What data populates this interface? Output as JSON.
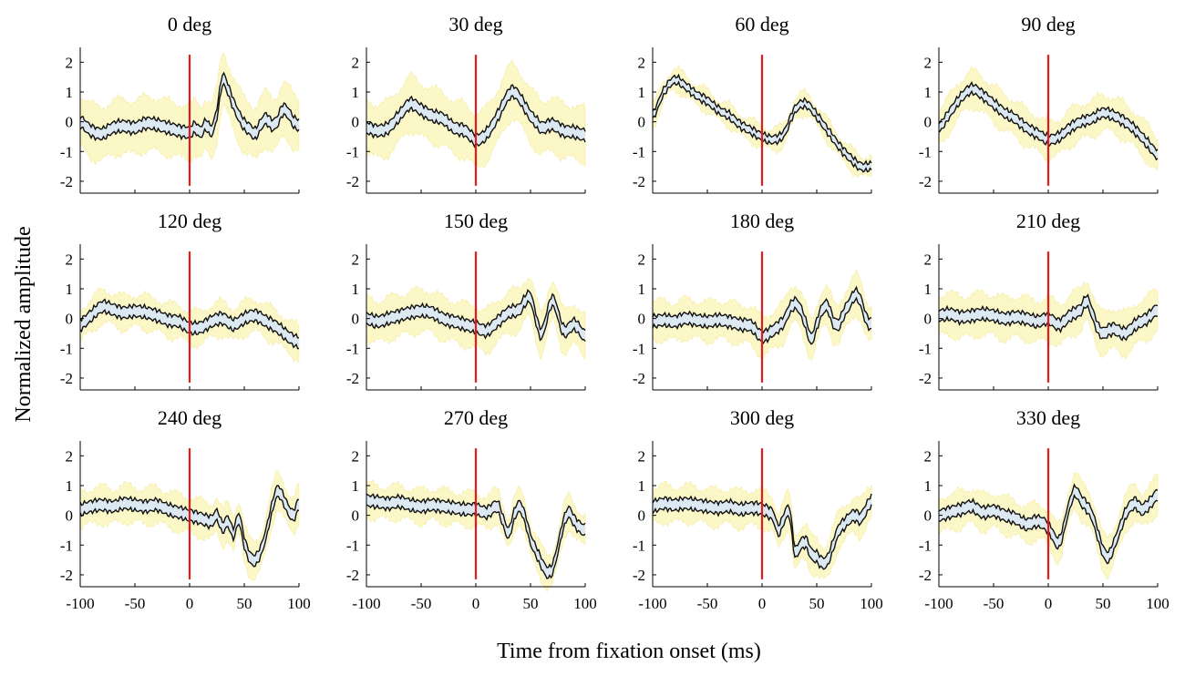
{
  "figure": {
    "ylabel": "Normalized amplitude",
    "xlabel": "Time from fixation onset (ms)"
  },
  "chart_data": {
    "type": "line",
    "xlim": [
      -100,
      100
    ],
    "ylim": [
      -2.4,
      2.5
    ],
    "xticks": [
      -100,
      -50,
      0,
      50,
      100
    ],
    "yticks": [
      2,
      1,
      0,
      -1,
      -2
    ],
    "marker_x": 0,
    "colors": {
      "band": "#fcf7c7",
      "sem": "#dde9f2",
      "line": "#111111",
      "marker": "#e31a1c"
    },
    "panels": [
      {
        "title": "0 deg",
        "x": [
          -100,
          -90,
          -80,
          -70,
          -60,
          -50,
          -40,
          -30,
          -20,
          -10,
          0,
          5,
          10,
          15,
          20,
          25,
          30,
          35,
          40,
          45,
          50,
          55,
          60,
          65,
          70,
          75,
          80,
          85,
          90,
          95,
          100
        ],
        "mean": [
          0.0,
          -0.3,
          -0.4,
          -0.2,
          -0.15,
          -0.2,
          -0.05,
          -0.1,
          -0.2,
          -0.3,
          -0.35,
          -0.2,
          -0.35,
          -0.1,
          -0.3,
          0.3,
          1.4,
          1.1,
          0.6,
          0.2,
          -0.1,
          -0.25,
          -0.4,
          -0.1,
          0.1,
          -0.1,
          0.0,
          0.4,
          0.3,
          0.0,
          -0.1
        ],
        "sem": 0.18,
        "band": 0.9
      },
      {
        "title": "30 deg",
        "x": [
          -100,
          -90,
          -80,
          -70,
          -60,
          -50,
          -40,
          -30,
          -20,
          -10,
          0,
          10,
          20,
          30,
          35,
          40,
          45,
          50,
          55,
          60,
          70,
          80,
          90,
          100
        ],
        "mean": [
          -0.2,
          -0.3,
          -0.2,
          0.2,
          0.6,
          0.4,
          0.2,
          0.1,
          -0.2,
          -0.3,
          -0.6,
          -0.4,
          0.2,
          0.9,
          1.0,
          0.8,
          0.5,
          0.2,
          0.0,
          -0.2,
          -0.1,
          -0.3,
          -0.35,
          -0.45
        ],
        "sem": 0.18,
        "band": 0.9
      },
      {
        "title": "60 deg",
        "x": [
          -100,
          -90,
          -80,
          -70,
          -60,
          -50,
          -40,
          -30,
          -20,
          -10,
          0,
          10,
          20,
          30,
          40,
          50,
          60,
          70,
          80,
          90,
          100
        ],
        "mean": [
          0.2,
          1.0,
          1.4,
          1.2,
          0.9,
          0.7,
          0.4,
          0.2,
          -0.1,
          -0.3,
          -0.5,
          -0.6,
          -0.4,
          0.4,
          0.6,
          0.2,
          -0.3,
          -0.8,
          -1.2,
          -1.5,
          -1.5
        ],
        "sem": 0.12,
        "band": 0.35
      },
      {
        "title": "90 deg",
        "x": [
          -100,
          -90,
          -80,
          -70,
          -60,
          -50,
          -40,
          -30,
          -20,
          -10,
          0,
          10,
          20,
          30,
          40,
          50,
          60,
          70,
          80,
          90,
          100
        ],
        "mean": [
          -0.2,
          0.3,
          0.8,
          1.1,
          0.9,
          0.6,
          0.3,
          0.1,
          -0.2,
          -0.4,
          -0.6,
          -0.5,
          -0.2,
          0.0,
          0.1,
          0.3,
          0.2,
          0.0,
          -0.3,
          -0.7,
          -1.1
        ],
        "sem": 0.15,
        "band": 0.6
      },
      {
        "title": "120 deg",
        "x": [
          -100,
          -90,
          -80,
          -70,
          -60,
          -50,
          -40,
          -30,
          -20,
          -10,
          0,
          10,
          20,
          30,
          40,
          50,
          60,
          70,
          80,
          90,
          100
        ],
        "mean": [
          -0.2,
          0.1,
          0.4,
          0.3,
          0.2,
          0.25,
          0.2,
          0.1,
          -0.05,
          -0.1,
          -0.3,
          -0.3,
          -0.1,
          0.0,
          -0.2,
          0.0,
          0.1,
          -0.1,
          -0.3,
          -0.6,
          -0.8
        ],
        "sem": 0.18,
        "band": 0.55
      },
      {
        "title": "150 deg",
        "x": [
          -100,
          -90,
          -80,
          -70,
          -60,
          -50,
          -40,
          -30,
          -20,
          -10,
          0,
          10,
          20,
          30,
          40,
          45,
          50,
          55,
          60,
          70,
          80,
          90,
          100
        ],
        "mean": [
          0.0,
          -0.1,
          0.0,
          0.1,
          0.2,
          0.25,
          0.2,
          0.0,
          -0.1,
          -0.2,
          -0.3,
          -0.4,
          -0.1,
          0.2,
          0.3,
          0.6,
          0.7,
          0.0,
          -0.5,
          0.6,
          -0.4,
          -0.2,
          -0.6
        ],
        "sem": 0.18,
        "band": 0.7
      },
      {
        "title": "180 deg",
        "x": [
          -100,
          -90,
          -80,
          -70,
          -60,
          -50,
          -40,
          -30,
          -20,
          -10,
          0,
          10,
          20,
          25,
          30,
          35,
          40,
          45,
          50,
          55,
          60,
          65,
          70,
          75,
          80,
          85,
          90,
          95,
          100
        ],
        "mean": [
          -0.1,
          -0.05,
          -0.1,
          0.0,
          -0.05,
          -0.1,
          -0.05,
          -0.1,
          -0.2,
          -0.25,
          -0.6,
          -0.4,
          -0.1,
          0.3,
          0.5,
          0.3,
          -0.2,
          -0.7,
          -0.2,
          0.3,
          0.4,
          -0.1,
          -0.2,
          0.2,
          0.5,
          0.8,
          0.6,
          0.0,
          -0.2
        ],
        "sem": 0.18,
        "band": 0.65
      },
      {
        "title": "210 deg",
        "x": [
          -100,
          -90,
          -80,
          -70,
          -60,
          -50,
          -40,
          -30,
          -20,
          -10,
          0,
          10,
          20,
          30,
          35,
          40,
          45,
          50,
          55,
          60,
          70,
          80,
          90,
          100
        ],
        "mean": [
          0.1,
          0.15,
          0.05,
          0.1,
          0.15,
          0.1,
          0.0,
          0.05,
          0.0,
          -0.1,
          0.0,
          -0.2,
          0.1,
          0.3,
          0.6,
          0.2,
          -0.3,
          -0.5,
          -0.4,
          -0.35,
          -0.5,
          -0.2,
          0.0,
          0.3
        ],
        "sem": 0.18,
        "band": 0.7
      },
      {
        "title": "240 deg",
        "x": [
          -100,
          -90,
          -80,
          -70,
          -60,
          -50,
          -40,
          -30,
          -20,
          -10,
          0,
          10,
          20,
          25,
          30,
          35,
          40,
          45,
          50,
          55,
          60,
          65,
          70,
          75,
          80,
          85,
          90,
          95,
          100
        ],
        "mean": [
          0.2,
          0.3,
          0.35,
          0.3,
          0.4,
          0.35,
          0.3,
          0.35,
          0.2,
          0.1,
          0.0,
          -0.1,
          -0.2,
          0.0,
          -0.4,
          -0.2,
          -0.6,
          -0.1,
          -0.9,
          -1.4,
          -1.5,
          -1.2,
          -0.6,
          0.2,
          0.8,
          0.6,
          0.2,
          0.0,
          0.4
        ],
        "sem": 0.18,
        "band": 0.6
      },
      {
        "title": "270 deg",
        "x": [
          -100,
          -90,
          -80,
          -70,
          -60,
          -50,
          -40,
          -30,
          -20,
          -10,
          0,
          10,
          20,
          25,
          30,
          35,
          40,
          45,
          50,
          55,
          60,
          65,
          70,
          75,
          80,
          85,
          90,
          95,
          100
        ],
        "mean": [
          0.5,
          0.45,
          0.4,
          0.45,
          0.35,
          0.3,
          0.35,
          0.3,
          0.25,
          0.2,
          0.2,
          0.1,
          0.3,
          -0.2,
          -0.6,
          0.0,
          0.3,
          -0.1,
          -0.8,
          -1.2,
          -1.6,
          -1.9,
          -1.8,
          -1.1,
          -0.3,
          0.1,
          -0.2,
          -0.4,
          -0.5
        ],
        "sem": 0.18,
        "band": 0.55
      },
      {
        "title": "300 deg",
        "x": [
          -100,
          -90,
          -80,
          -70,
          -60,
          -50,
          -40,
          -30,
          -20,
          -10,
          0,
          10,
          15,
          20,
          25,
          30,
          35,
          40,
          45,
          50,
          55,
          60,
          65,
          70,
          75,
          80,
          85,
          90,
          95,
          100
        ],
        "mean": [
          0.3,
          0.4,
          0.35,
          0.4,
          0.35,
          0.3,
          0.25,
          0.3,
          0.2,
          0.25,
          0.2,
          0.0,
          -0.5,
          -0.1,
          0.1,
          -1.2,
          -1.0,
          -0.9,
          -1.3,
          -1.4,
          -1.6,
          -1.5,
          -1.0,
          -0.5,
          -0.3,
          -0.1,
          0.0,
          -0.1,
          0.2,
          0.5
        ],
        "sem": 0.18,
        "band": 0.6
      },
      {
        "title": "330 deg",
        "x": [
          -100,
          -90,
          -80,
          -70,
          -60,
          -50,
          -40,
          -30,
          -20,
          -10,
          0,
          10,
          20,
          25,
          30,
          35,
          40,
          45,
          50,
          55,
          60,
          65,
          70,
          75,
          80,
          85,
          90,
          95,
          100
        ],
        "mean": [
          0.0,
          0.1,
          0.2,
          0.3,
          0.1,
          0.15,
          0.0,
          -0.1,
          -0.3,
          -0.2,
          -0.4,
          -0.9,
          0.4,
          0.8,
          0.5,
          0.3,
          0.0,
          -0.6,
          -1.2,
          -1.4,
          -1.0,
          -0.5,
          0.0,
          0.3,
          0.4,
          0.2,
          0.3,
          0.5,
          0.7
        ],
        "sem": 0.18,
        "band": 0.6
      }
    ]
  }
}
